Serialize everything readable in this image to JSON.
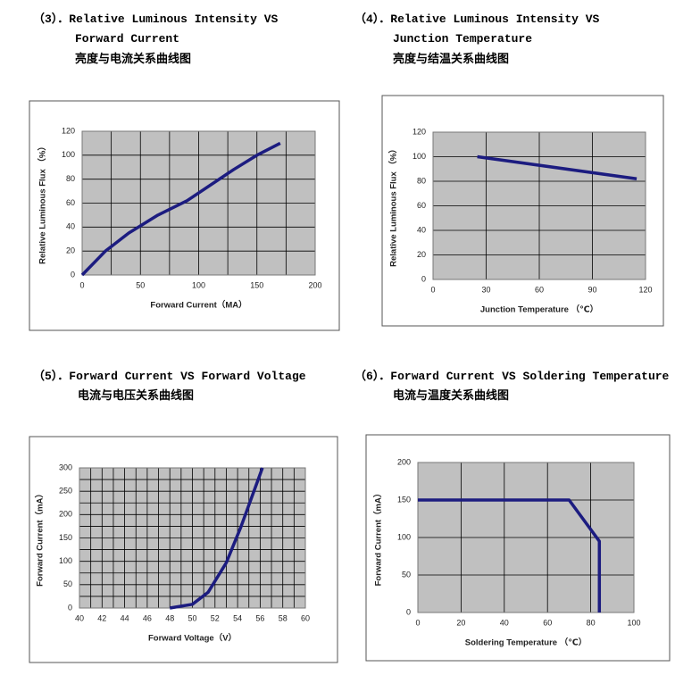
{
  "chart_data": [
    {
      "type": "line",
      "title": "（3）．Relative Luminous Intensity VS",
      "title_line2": "Forward Current",
      "subtitle": "亮度与电流关系曲线图",
      "x_label": "Forward Current（MA）",
      "y_label": "Relative Luminous Flux （%）",
      "xlim": [
        0,
        200
      ],
      "xticks": [
        0,
        50,
        100,
        150,
        200
      ],
      "xgrid": [
        0,
        25,
        50,
        75,
        100,
        125,
        150,
        175,
        200
      ],
      "ylim": [
        0,
        120
      ],
      "yticks": [
        0,
        20,
        40,
        60,
        80,
        100,
        120
      ],
      "ygrid": [
        0,
        20,
        40,
        60,
        80,
        100,
        120
      ],
      "grid": true,
      "series": [
        {
          "color": "#1c1c80",
          "x": [
            0,
            20,
            40,
            65,
            90,
            130,
            150,
            170
          ],
          "values": [
            0,
            20,
            35,
            50,
            62,
            88,
            100,
            110
          ]
        }
      ]
    },
    {
      "type": "line",
      "title": "（4）．Relative Luminous Intensity VS",
      "title_line2": "Junction Temperature",
      "subtitle": "亮度与结温关系曲线图",
      "x_label": "Junction Temperature （℃）",
      "y_label": "Relative Luminous Flux （%）",
      "xlim": [
        0,
        120
      ],
      "xticks": [
        0,
        30,
        60,
        90,
        120
      ],
      "xgrid": [
        0,
        30,
        60,
        90,
        120
      ],
      "ylim": [
        0,
        120
      ],
      "yticks": [
        0,
        20,
        40,
        60,
        80,
        100,
        120
      ],
      "ygrid": [
        0,
        20,
        40,
        60,
        80,
        100,
        120
      ],
      "grid": true,
      "series": [
        {
          "color": "#1c1c80",
          "x": [
            25,
            115
          ],
          "values": [
            100,
            82
          ]
        }
      ]
    },
    {
      "type": "line",
      "title": "（5）．Forward Current VS Forward Voltage",
      "subtitle": "电流与电压关系曲线图",
      "x_label": "Forward Voltage（V）",
      "y_label": "Forward Current（mA）",
      "xlim": [
        40,
        60
      ],
      "xticks": [
        40,
        42,
        44,
        46,
        48,
        50,
        52,
        54,
        56,
        58,
        60
      ],
      "xgrid": [
        40,
        41,
        42,
        43,
        44,
        45,
        46,
        47,
        48,
        49,
        50,
        51,
        52,
        53,
        54,
        55,
        56,
        57,
        58,
        59,
        60
      ],
      "ylim": [
        0,
        300
      ],
      "yticks": [
        0,
        50,
        100,
        150,
        200,
        250,
        300
      ],
      "ygrid": [
        0,
        25,
        50,
        75,
        100,
        125,
        150,
        175,
        200,
        225,
        250,
        275,
        300
      ],
      "grid": true,
      "series": [
        {
          "color": "#1c1c80",
          "x": [
            48,
            50,
            51.4,
            53,
            54.3,
            56.2
          ],
          "values": [
            0,
            8,
            34,
            97,
            174,
            300
          ]
        }
      ]
    },
    {
      "type": "line",
      "title": "（6）．Forward Current VS Soldering Temperature",
      "subtitle": "电流与温度关系曲线图",
      "x_label": "Soldering Temperature （℃）",
      "y_label": "Forward Current（mA）",
      "xlim": [
        0,
        100
      ],
      "xticks": [
        0,
        20,
        40,
        60,
        80,
        100
      ],
      "xgrid": [
        0,
        20,
        40,
        60,
        80,
        100
      ],
      "ylim": [
        0,
        200
      ],
      "yticks": [
        0,
        50,
        100,
        150,
        200
      ],
      "ygrid": [
        0,
        50,
        100,
        150,
        200
      ],
      "grid": true,
      "series": [
        {
          "color": "#1c1c80",
          "x": [
            0,
            70,
            84,
            84
          ],
          "values": [
            150,
            150,
            95,
            0
          ]
        }
      ]
    }
  ]
}
